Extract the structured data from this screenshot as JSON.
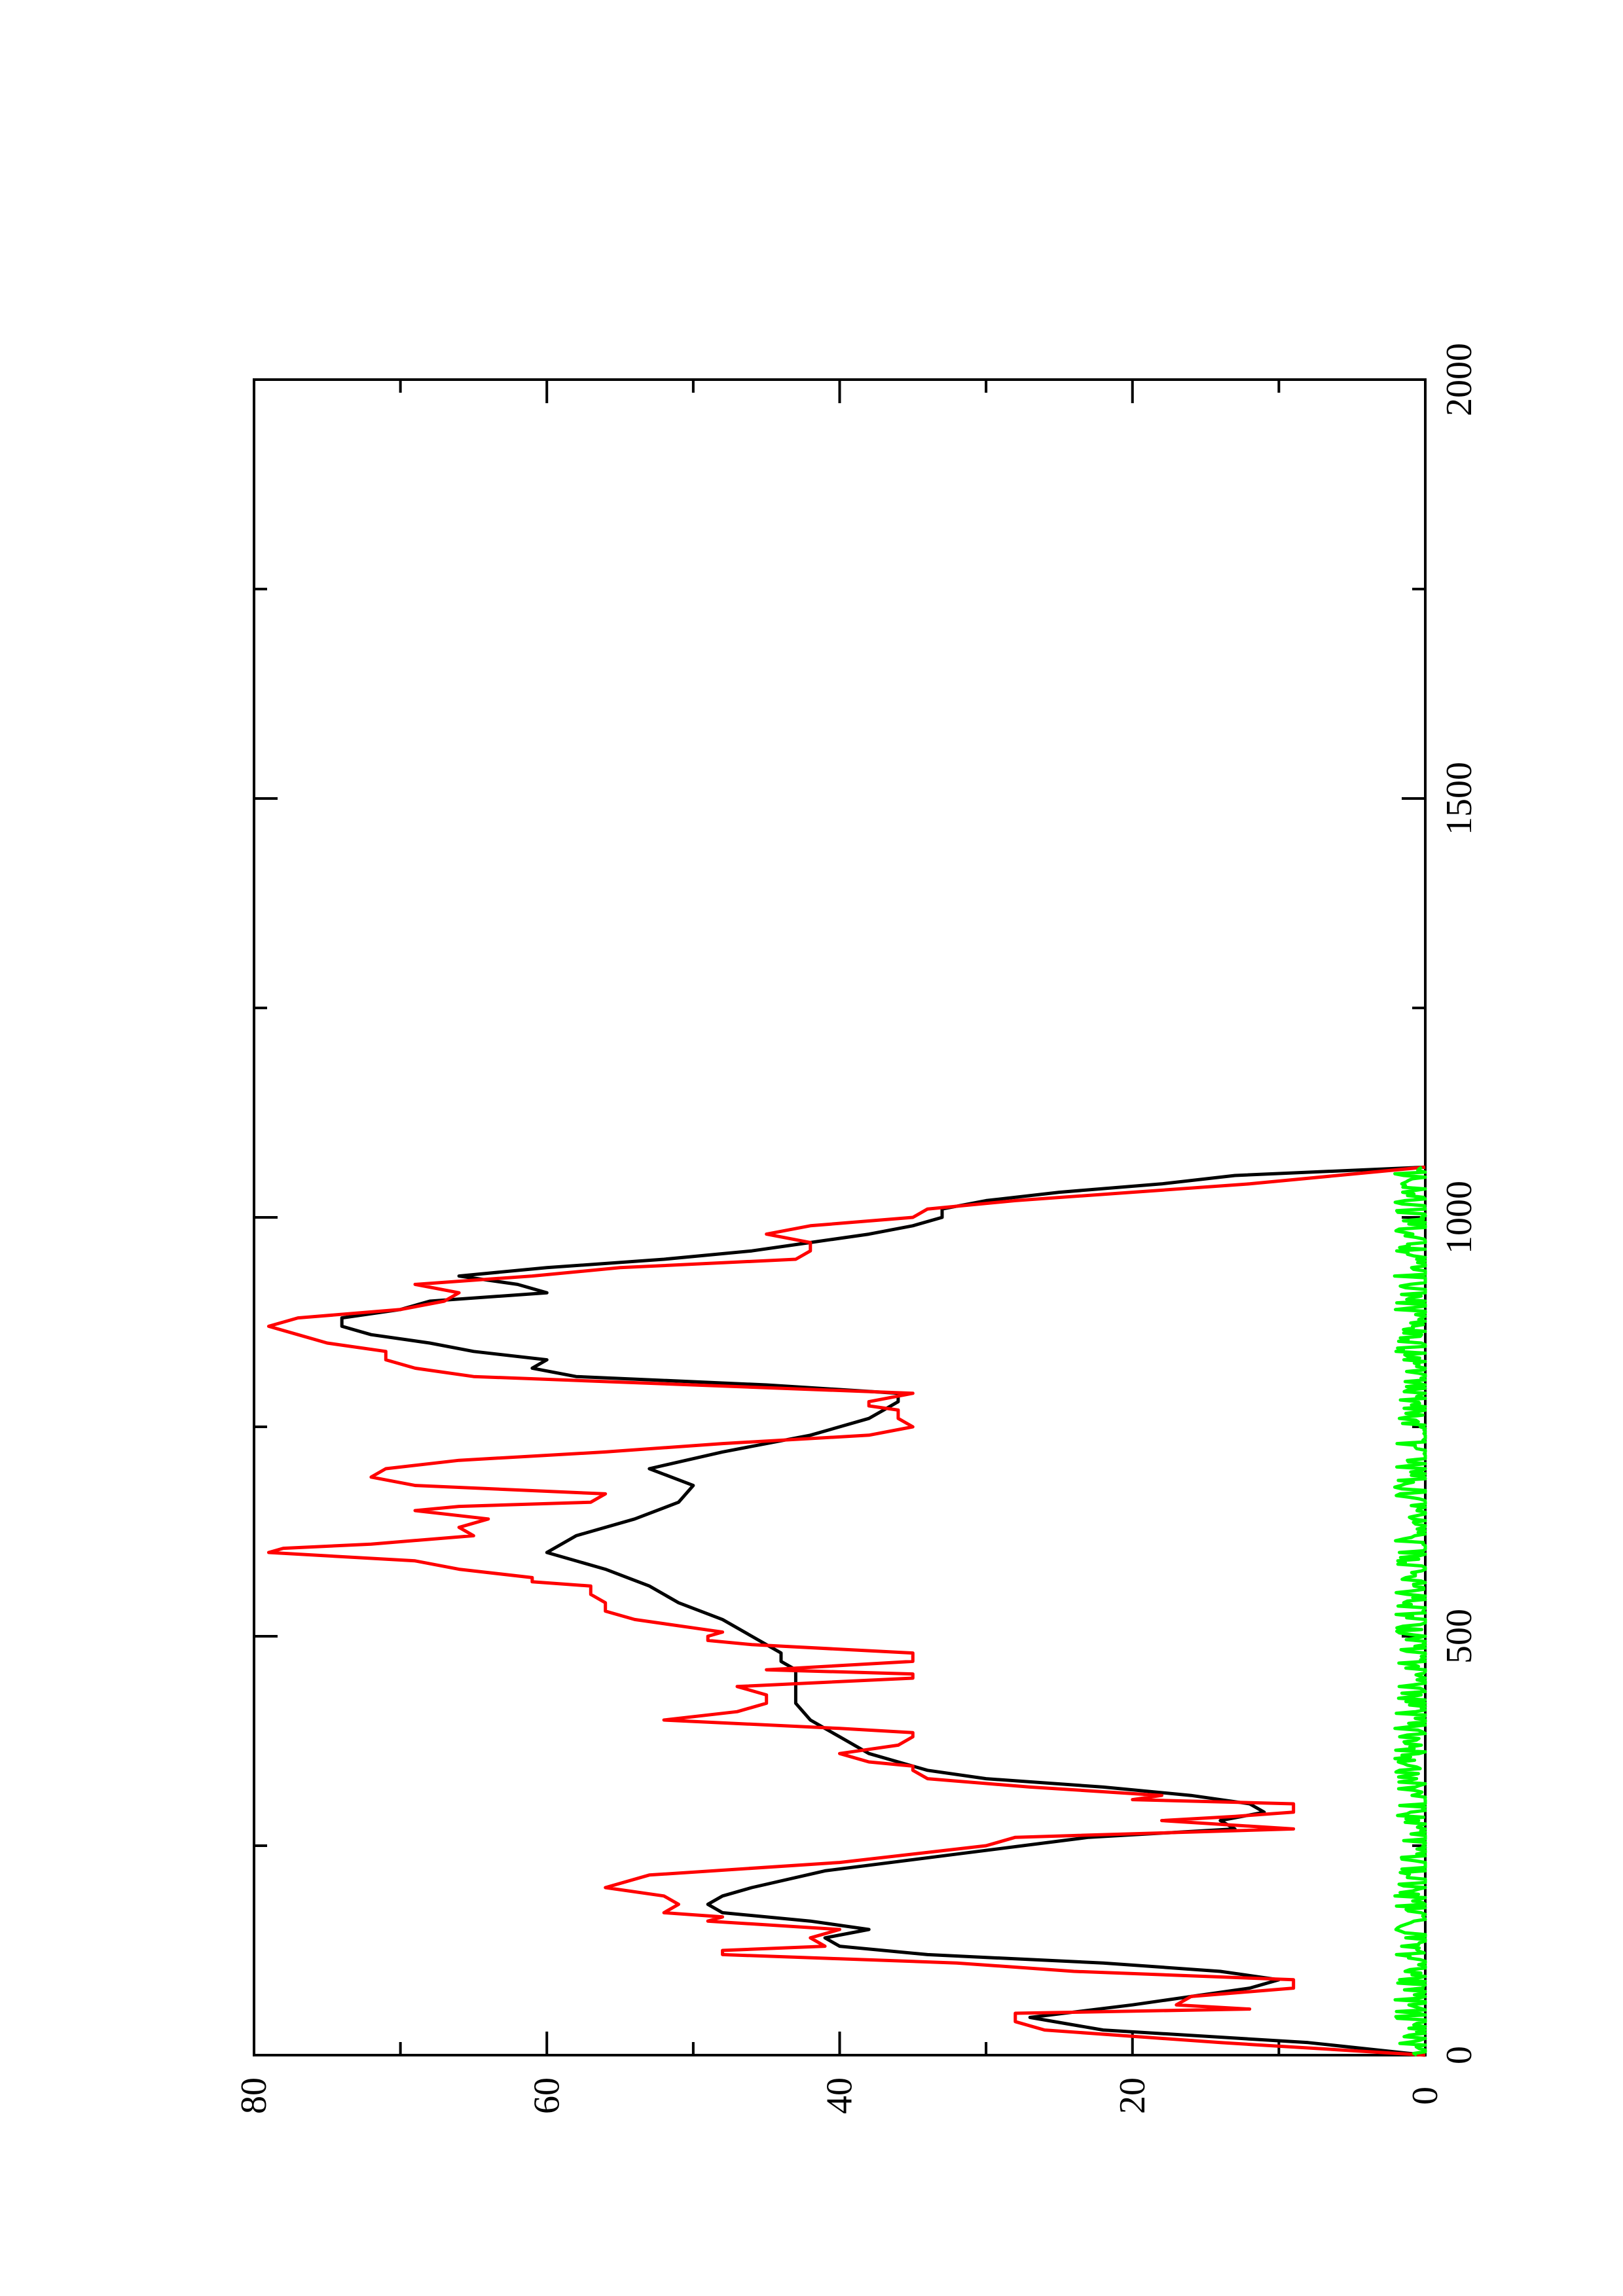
{
  "chart_data": {
    "type": "line",
    "title": "",
    "xlabel": "",
    "ylabel": "",
    "rotation": "figure rotated 90 degrees counter-clockwise (x axis runs bottom-to-top, y axis runs right-to-left)",
    "xlim": [
      0,
      2000
    ],
    "ylim": [
      0,
      80
    ],
    "x_ticks": [
      0,
      500,
      1000,
      1500,
      2000
    ],
    "y_ticks": [
      0,
      20,
      40,
      60,
      80
    ],
    "x_tick_labels": [
      "0",
      "500",
      "1000",
      "1500",
      "2000"
    ],
    "y_tick_labels": [
      "0",
      "20",
      "40",
      "60",
      "80"
    ],
    "grid": false,
    "legend": "none",
    "series": [
      {
        "color": "#000000",
        "style": "line",
        "x": [
          0,
          15,
          30,
          45,
          60,
          70,
          80,
          90,
          100,
          110,
          120,
          130,
          140,
          150,
          160,
          170,
          180,
          190,
          200,
          220,
          240,
          260,
          270,
          280,
          290,
          300,
          310,
          320,
          330,
          340,
          350,
          360,
          370,
          380,
          390,
          400,
          420,
          440,
          460,
          470,
          480,
          490,
          500,
          520,
          540,
          560,
          580,
          600,
          620,
          640,
          660,
          680,
          700,
          720,
          740,
          760,
          770,
          780,
          790,
          800,
          810,
          820,
          830,
          840,
          850,
          860,
          870,
          880,
          890,
          900,
          910,
          920,
          930,
          940,
          950,
          960,
          970,
          980,
          990,
          1000,
          1010,
          1020,
          1030,
          1040,
          1050,
          1060
        ],
        "y": [
          0,
          8,
          22,
          27,
          20,
          16,
          12,
          10,
          14,
          22,
          34,
          40,
          41,
          38,
          42,
          48,
          49,
          48,
          46,
          41,
          32,
          23,
          13,
          14,
          11,
          12,
          16,
          22,
          30,
          34,
          36,
          38,
          39,
          40,
          41,
          42,
          43,
          43,
          43,
          44,
          44,
          45,
          46,
          48,
          51,
          53,
          56,
          60,
          58,
          54,
          51,
          50,
          53,
          48,
          42,
          38,
          37,
          36,
          36,
          45,
          58,
          61,
          60,
          65,
          68,
          72,
          74,
          74,
          70,
          68,
          60,
          62,
          66,
          60,
          52,
          46,
          42,
          38,
          35,
          33,
          33,
          30,
          25,
          18,
          13,
          0
        ]
      },
      {
        "color": "#ff0000",
        "style": "step-line",
        "x": [
          0,
          15,
          30,
          40,
          50,
          55,
          60,
          70,
          80,
          90,
          100,
          110,
          115,
          120,
          125,
          130,
          140,
          150,
          160,
          165,
          170,
          180,
          190,
          200,
          215,
          230,
          250,
          260,
          270,
          280,
          285,
          290,
          300,
          305,
          310,
          320,
          330,
          340,
          345,
          350,
          360,
          370,
          380,
          385,
          390,
          400,
          410,
          415,
          420,
          430,
          440,
          450,
          455,
          460,
          470,
          480,
          490,
          495,
          500,
          505,
          510,
          520,
          530,
          540,
          550,
          560,
          565,
          570,
          580,
          590,
          600,
          605,
          610,
          620,
          630,
          640,
          650,
          655,
          660,
          670,
          680,
          690,
          700,
          710,
          720,
          730,
          740,
          750,
          760,
          770,
          775,
          780,
          790,
          800,
          810,
          820,
          830,
          840,
          850,
          860,
          870,
          880,
          890,
          900,
          910,
          920,
          930,
          940,
          950,
          960,
          970,
          980,
          990,
          1000,
          1010,
          1020,
          1030,
          1040,
          1050,
          1060
        ],
        "y": [
          0,
          14,
          26,
          28,
          28,
          12,
          17,
          16,
          9,
          9,
          24,
          32,
          40,
          48,
          48,
          41,
          42,
          40,
          49,
          48,
          52,
          51,
          52,
          56,
          53,
          40,
          30,
          28,
          9,
          18,
          13,
          9,
          9,
          20,
          18,
          27,
          34,
          35,
          35,
          38,
          40,
          36,
          35,
          35,
          40,
          52,
          47,
          46,
          45,
          45,
          47,
          35,
          35,
          45,
          35,
          35,
          46,
          49,
          49,
          48,
          50,
          54,
          56,
          56,
          57,
          57,
          61,
          61,
          66,
          69,
          79,
          78,
          72,
          65,
          66,
          64,
          69,
          66,
          57,
          56,
          69,
          72,
          71,
          66,
          56,
          48,
          38,
          35,
          36,
          36,
          38,
          38,
          35,
          50,
          65,
          69,
          71,
          71,
          75,
          77,
          79,
          77,
          70,
          67,
          66,
          69,
          61,
          55,
          43,
          42,
          42,
          45,
          42,
          35,
          34,
          28,
          20,
          12,
          6,
          0
        ]
      },
      {
        "color": "#00ff00",
        "style": "noise-line",
        "x_range": [
          0,
          1060
        ],
        "amplitude": 1.5
      }
    ]
  }
}
